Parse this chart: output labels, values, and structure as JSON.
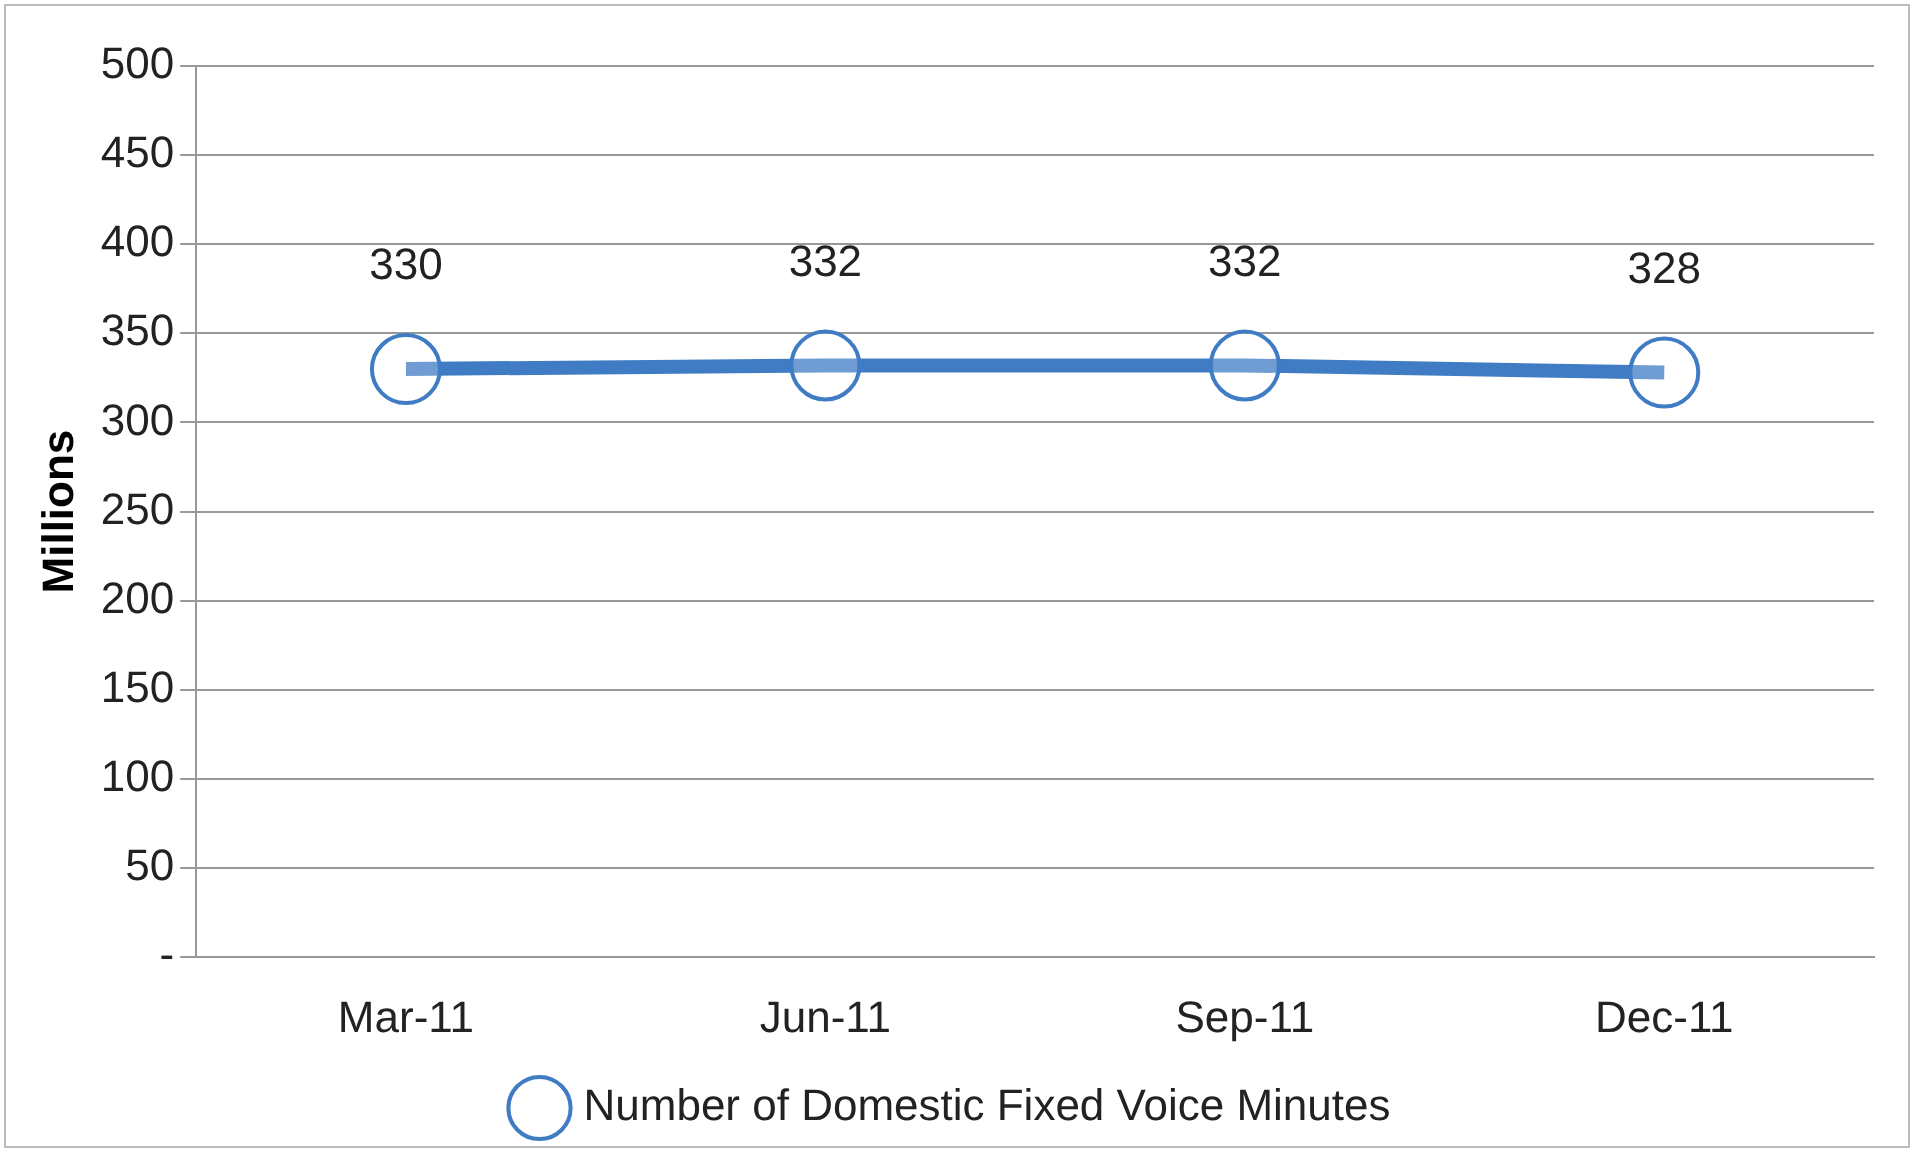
{
  "chart_data": {
    "type": "line",
    "ylabel": "Millions",
    "categories": [
      "Mar-11",
      "Jun-11",
      "Sep-11",
      "Dec-11"
    ],
    "series": [
      {
        "name": "Number of Domestic Fixed Voice Minutes",
        "color": "#3f7cc4",
        "values": [
          330,
          332,
          332,
          328
        ]
      }
    ],
    "ylim": [
      0,
      500
    ],
    "yticks": [
      {
        "value": 0,
        "label": "-"
      },
      50,
      100,
      150,
      200,
      250,
      300,
      350,
      400,
      450,
      500
    ],
    "grid": "y",
    "legend": "bottom",
    "marker": "circle",
    "line_style": "solid",
    "data_labels": true
  }
}
